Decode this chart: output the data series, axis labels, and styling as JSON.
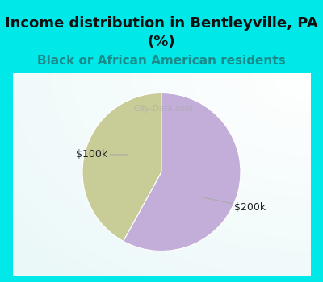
{
  "title": "Income distribution in Bentleyville, PA\n(%)",
  "subtitle": "Black or African American residents",
  "slices": [
    {
      "label": "$100k",
      "value": 42,
      "color": "#c8cc96"
    },
    {
      "label": "$200k",
      "value": 58,
      "color": "#c2aed8"
    }
  ],
  "title_fontsize": 13,
  "subtitle_fontsize": 11,
  "title_color": "#111111",
  "subtitle_color": "#1a8a8a",
  "title_bg": "#00e8e8",
  "watermark": "City-Data.com",
  "start_angle": 90,
  "label_fontsize": 9,
  "label_color": "#222222"
}
